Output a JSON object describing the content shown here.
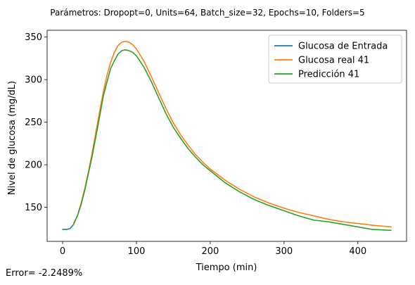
{
  "chart_data": {
    "type": "line",
    "suptitle": "Parámetros: Dropopt=0, Units=64, Batch_size=32, Epochs=10, Folders=5",
    "xlabel": "Tiempo (min)",
    "ylabel": "Nivel de glucosa (mg/dL)",
    "xlim": [
      -21,
      466
    ],
    "ylim": [
      110,
      358
    ],
    "xticks": [
      0,
      100,
      200,
      300,
      400
    ],
    "yticks": [
      150,
      200,
      250,
      300,
      350
    ],
    "legend_position": "top-right",
    "series": [
      {
        "name": "Glucosa de Entrada",
        "color": "#1f77b4",
        "x": [
          0,
          5,
          10,
          15
        ],
        "y": [
          124,
          124,
          125,
          130
        ]
      },
      {
        "name": "Glucosa real 41",
        "color": "#ff7f0e",
        "x": [
          15,
          20,
          25,
          30,
          35,
          40,
          45,
          50,
          55,
          60,
          65,
          70,
          75,
          80,
          85,
          90,
          95,
          100,
          110,
          120,
          130,
          140,
          150,
          160,
          170,
          180,
          190,
          200,
          220,
          240,
          260,
          280,
          300,
          320,
          340,
          360,
          380,
          400,
          420,
          445
        ],
        "y": [
          130,
          140,
          155,
          172,
          192,
          214,
          238,
          262,
          285,
          305,
          320,
          332,
          340,
          344,
          345,
          344,
          341,
          336,
          322,
          304,
          285,
          266,
          249,
          235,
          223,
          212,
          203,
          195,
          182,
          171,
          162,
          155,
          149,
          144,
          140,
          136,
          133,
          131,
          129,
          127
        ]
      },
      {
        "name": "Predicción 41",
        "color": "#2ca02c",
        "x": [
          15,
          20,
          25,
          30,
          35,
          40,
          45,
          50,
          55,
          60,
          65,
          70,
          75,
          80,
          85,
          90,
          95,
          100,
          110,
          120,
          130,
          140,
          150,
          160,
          170,
          180,
          190,
          200,
          220,
          240,
          260,
          280,
          300,
          320,
          340,
          360,
          380,
          400,
          420,
          445
        ],
        "y": [
          131,
          140,
          153,
          170,
          190,
          210,
          233,
          256,
          280,
          297,
          313,
          322,
          330,
          334,
          335,
          334,
          332,
          328,
          315,
          298,
          279,
          260,
          244,
          231,
          219,
          209,
          200,
          193,
          179,
          168,
          159,
          152,
          146,
          140,
          135,
          133,
          130,
          127,
          124,
          123
        ]
      }
    ]
  },
  "footer": {
    "error_text": "Error= -2.2489%"
  }
}
